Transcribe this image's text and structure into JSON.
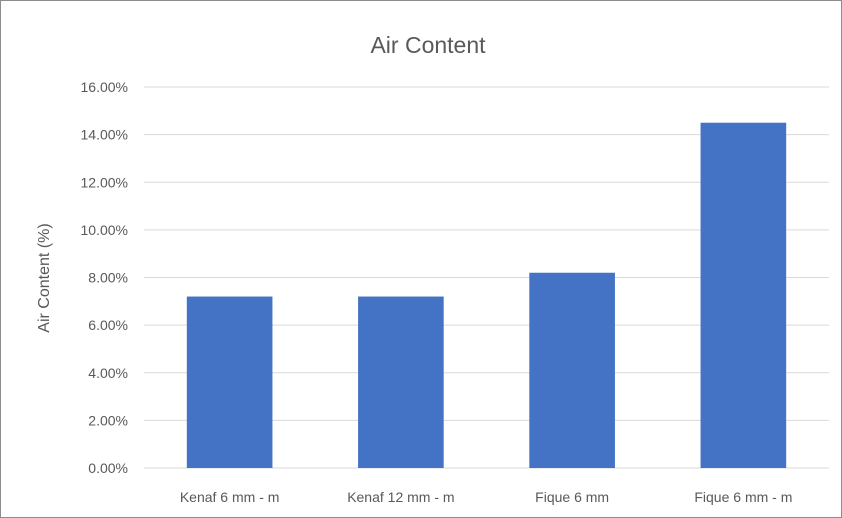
{
  "chart_data": {
    "type": "bar",
    "title": "Air Content",
    "xlabel": "",
    "ylabel": "Air Content (%)",
    "categories": [
      "Kenaf 6 mm - m",
      "Kenaf 12 mm - m",
      "Fique 6 mm",
      "Fique 6 mm - m"
    ],
    "values": [
      7.2,
      7.2,
      8.2,
      14.5
    ],
    "ylim": [
      0,
      16
    ],
    "yticks": [
      0,
      2,
      4,
      6,
      8,
      10,
      12,
      14,
      16
    ],
    "ytick_labels": [
      "0.00%",
      "2.00%",
      "4.00%",
      "6.00%",
      "8.00%",
      "10.00%",
      "12.00%",
      "14.00%",
      "16.00%"
    ],
    "grid": true,
    "legend": "none",
    "bar_color": "#4472c4",
    "grid_color": "#d9d9d9"
  }
}
